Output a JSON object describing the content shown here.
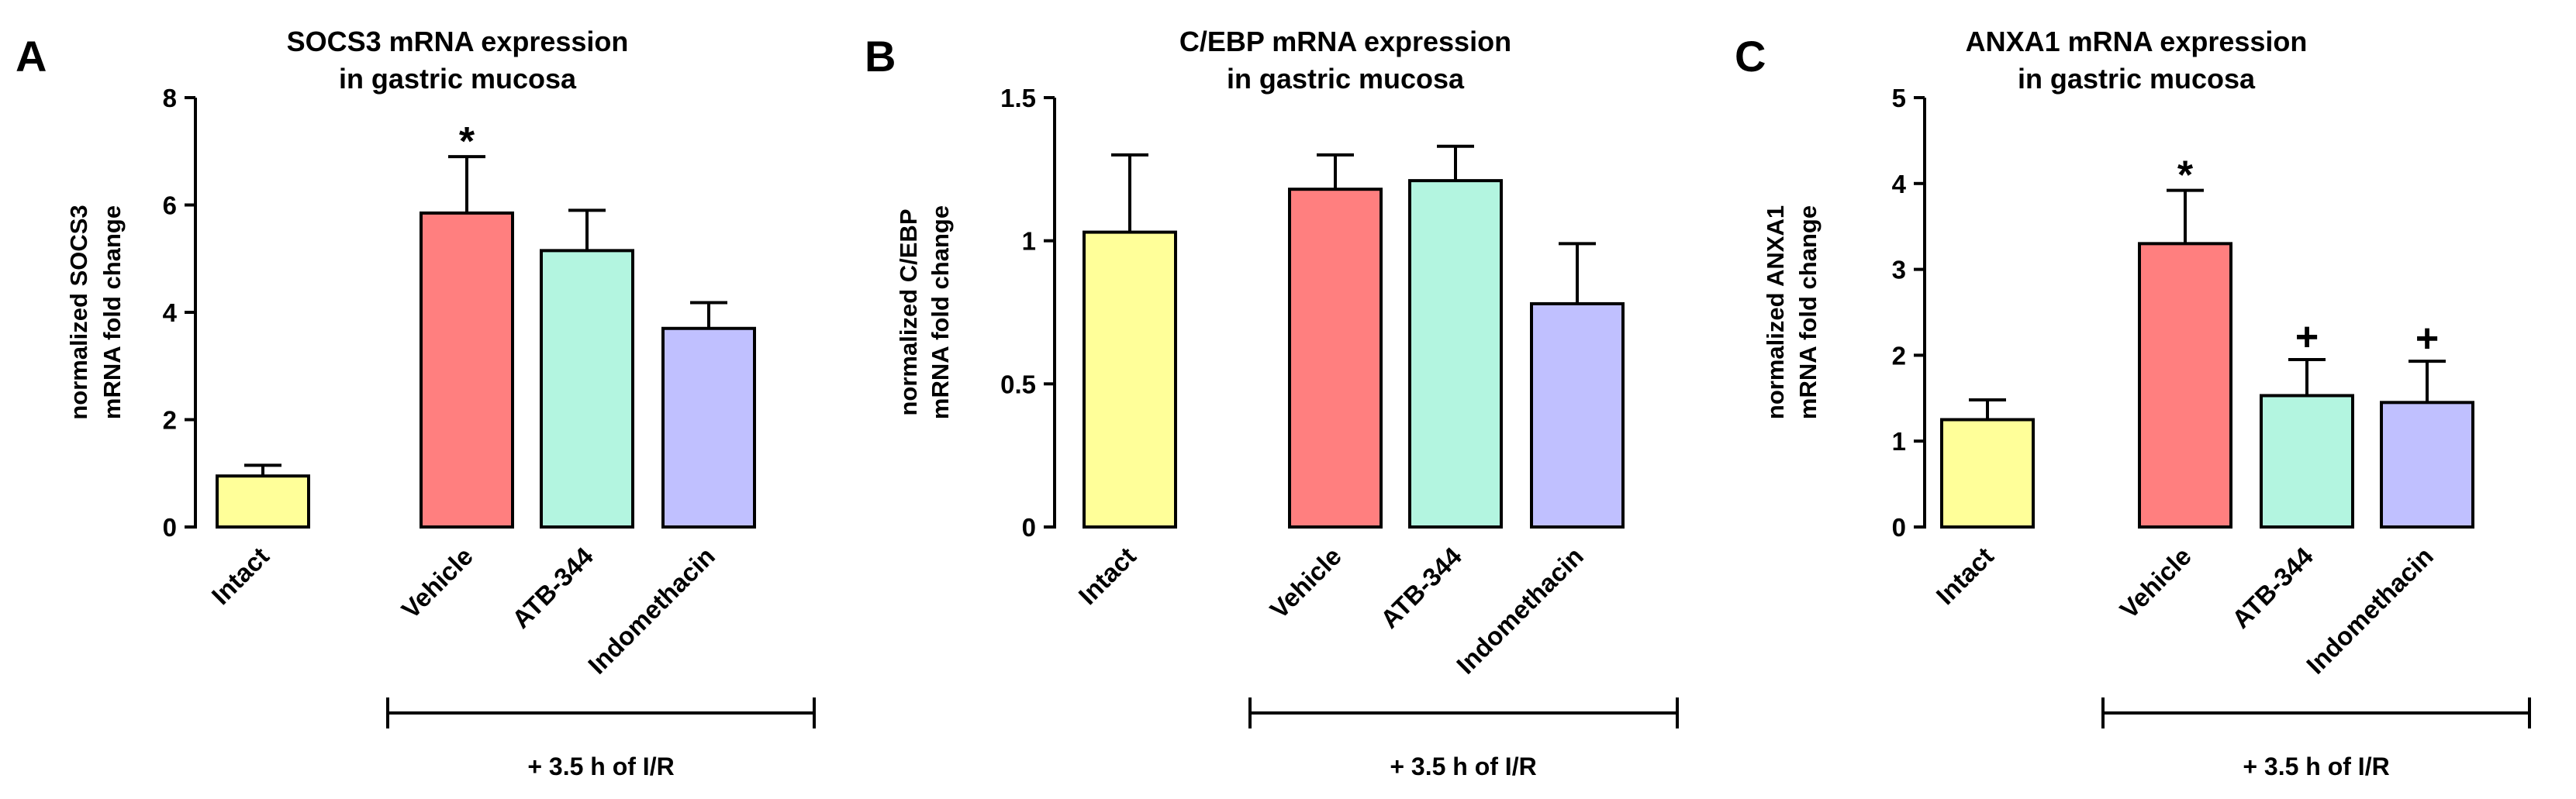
{
  "chart_data": [
    {
      "panel": "A",
      "type": "bar",
      "title": [
        "SOCS3 mRNA expression",
        "in gastric mucosa"
      ],
      "ylabel": [
        "normalized SOCS3",
        "mRNA fold change"
      ],
      "ylim": [
        0,
        8
      ],
      "yticks": [
        0,
        2,
        4,
        6,
        8
      ],
      "categories": [
        "Intact",
        "Vehicle",
        "ATB-344",
        "Indomethacin"
      ],
      "values": [
        0.95,
        5.85,
        5.15,
        3.7
      ],
      "errors": [
        0.2,
        1.05,
        0.75,
        0.48
      ],
      "colors": [
        "#ffff99",
        "#ff7f7f",
        "#b3f5e0",
        "#c0c0ff"
      ],
      "annotations": [
        "",
        "*",
        "",
        ""
      ],
      "treatment_label": "+ 3.5 h of I/R"
    },
    {
      "panel": "B",
      "type": "bar",
      "title": [
        "C/EBP mRNA expression",
        "in gastric mucosa"
      ],
      "ylabel": [
        "normalized C/EBP",
        "mRNA fold change"
      ],
      "ylim": [
        0,
        1.5
      ],
      "yticks": [
        0.0,
        0.5,
        1.0,
        1.5
      ],
      "categories": [
        "Intact",
        "Vehicle",
        "ATB-344",
        "Indomethacin"
      ],
      "values": [
        1.03,
        1.18,
        1.21,
        0.78
      ],
      "errors": [
        0.27,
        0.12,
        0.12,
        0.21
      ],
      "colors": [
        "#ffff99",
        "#ff7f7f",
        "#b3f5e0",
        "#c0c0ff"
      ],
      "annotations": [
        "",
        "",
        "",
        ""
      ],
      "treatment_label": "+ 3.5 h of I/R"
    },
    {
      "panel": "C",
      "type": "bar",
      "title": [
        "ANXA1 mRNA expression",
        "in gastric mucosa"
      ],
      "ylabel": [
        "normalized ANXA1",
        "mRNA fold change"
      ],
      "ylim": [
        0,
        5
      ],
      "yticks": [
        0,
        1,
        2,
        3,
        4,
        5
      ],
      "categories": [
        "Intact",
        "Vehicle",
        "ATB-344",
        "Indomethacin"
      ],
      "values": [
        1.25,
        3.3,
        1.53,
        1.45
      ],
      "errors": [
        0.23,
        0.62,
        0.42,
        0.48
      ],
      "colors": [
        "#ffff99",
        "#ff7f7f",
        "#b3f5e0",
        "#c0c0ff"
      ],
      "annotations": [
        "",
        "*",
        "+",
        "+"
      ],
      "treatment_label": "+ 3.5 h of I/R"
    }
  ]
}
